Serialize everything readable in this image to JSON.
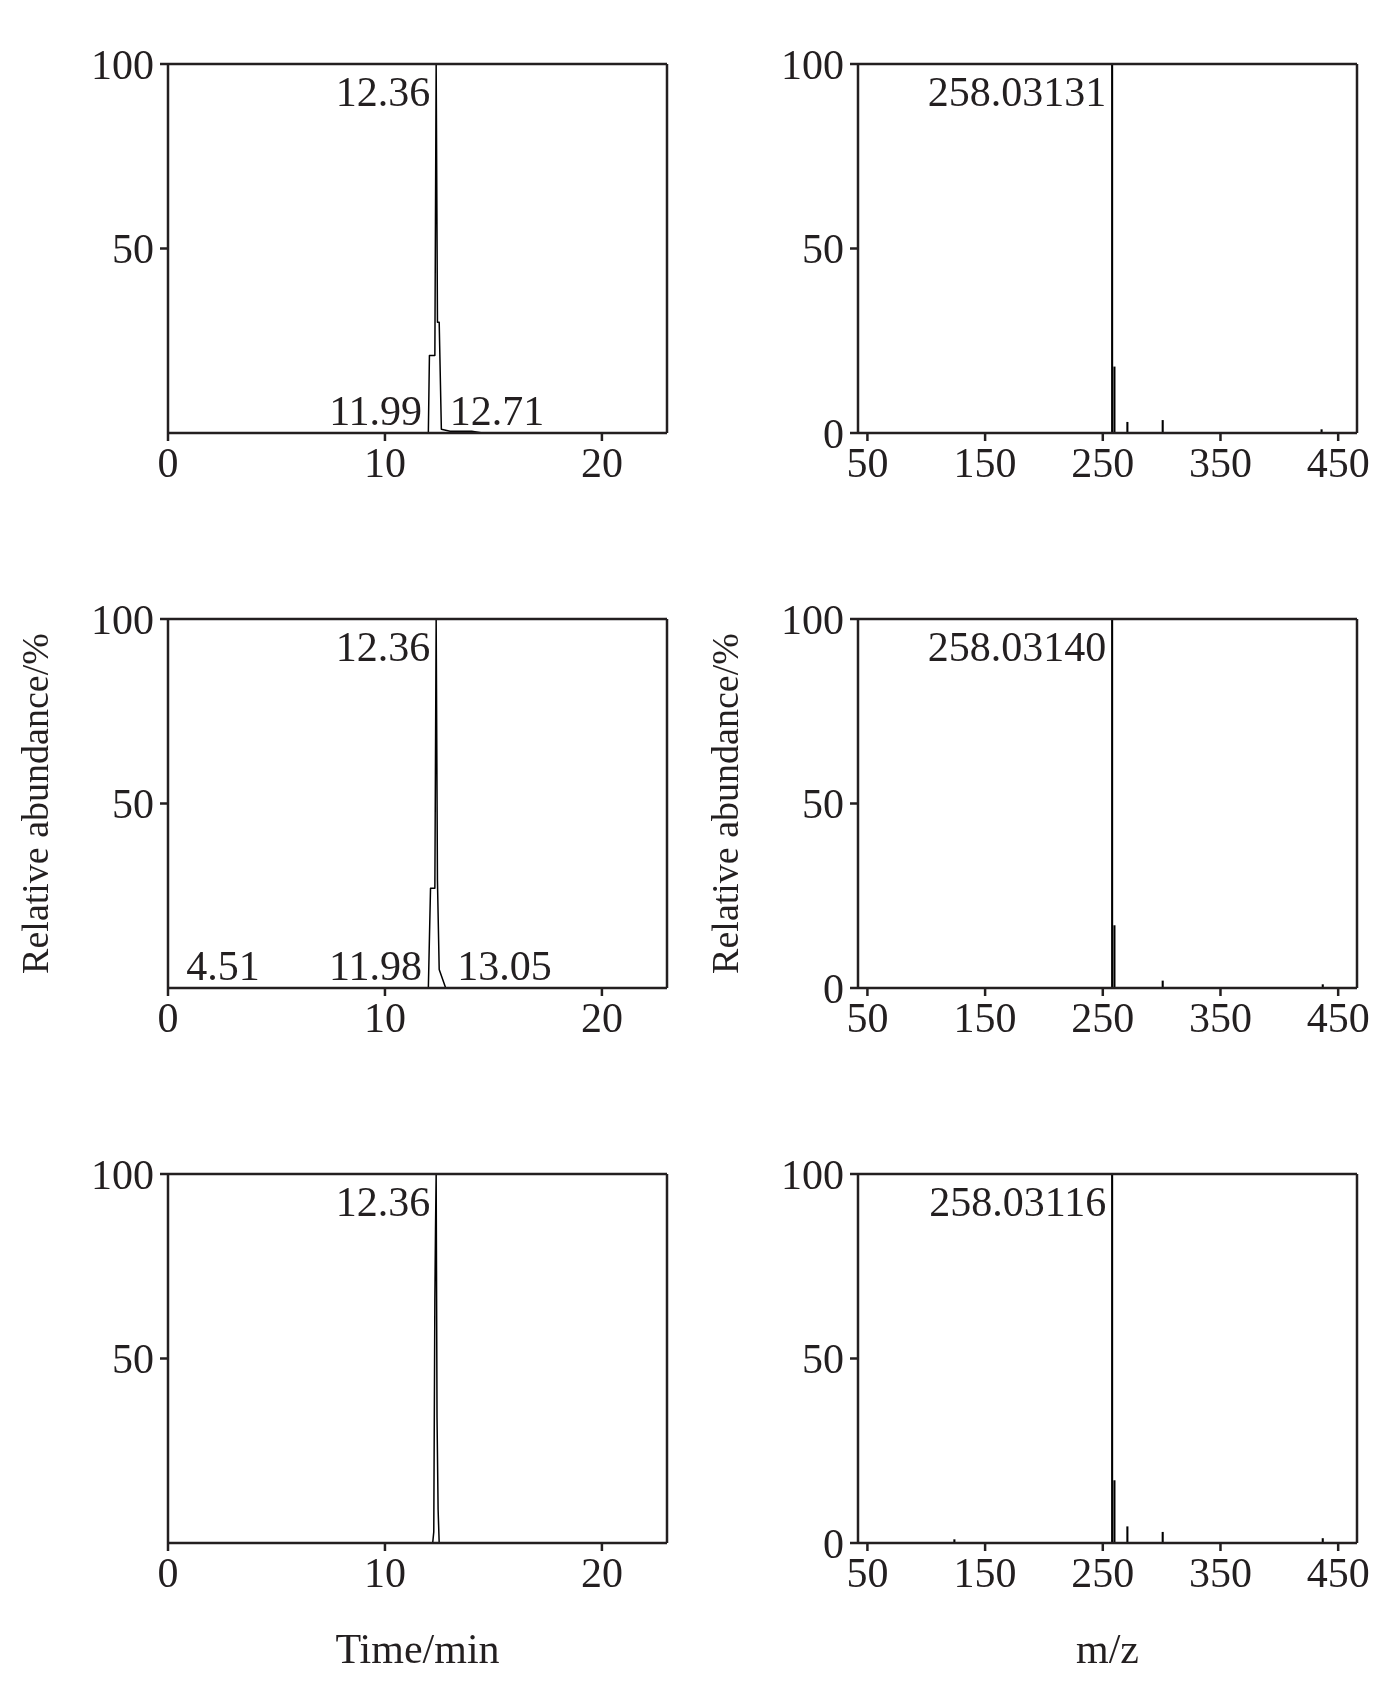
{
  "chart_data": [
    {
      "type": "line",
      "x": [
        0,
        11.9,
        12.0,
        12.05,
        12.3,
        12.36,
        12.42,
        12.5,
        12.6,
        13,
        14,
        14.5,
        23
      ],
      "series": [
        {
          "color": "#000000",
          "values": [
            0,
            0,
            0,
            21,
            21,
            100,
            30,
            30,
            1,
            0.5,
            0.5,
            0,
            0
          ]
        }
      ],
      "xlim": [
        0,
        23
      ],
      "xticks": [
        0,
        10,
        20
      ],
      "ylim": [
        0,
        100
      ],
      "yticks": [
        50,
        100
      ],
      "marker": "none",
      "annotations": [
        {
          "text": "12.36",
          "x": 12.36,
          "y": 100
        },
        {
          "text": "11.99",
          "x": 11.99,
          "y": 0
        },
        {
          "text": "12.71",
          "x": 12.71,
          "y": 0
        }
      ]
    },
    {
      "type": "bar",
      "x": [
        258.03131,
        260,
        271,
        301,
        436
      ],
      "series": [
        {
          "color": "#000000",
          "values": [
            100,
            18,
            3,
            3.5,
            1
          ]
        }
      ],
      "xlim": [
        42,
        466
      ],
      "xticks": [
        50,
        150,
        250,
        350,
        450
      ],
      "ylim": [
        0,
        100
      ],
      "yticks": [
        0,
        50,
        100
      ],
      "annotations": [
        {
          "text": "258.03131",
          "x": 258.03131,
          "y": 100
        }
      ]
    },
    {
      "type": "line",
      "x": [
        0,
        10,
        12.0,
        12.1,
        12.3,
        12.36,
        12.42,
        12.5,
        12.8,
        23
      ],
      "series": [
        {
          "color": "#000000",
          "values": [
            0,
            0,
            0,
            27,
            27,
            100,
            29,
            5,
            0,
            0
          ]
        }
      ],
      "xlim": [
        0,
        23
      ],
      "xticks": [
        0,
        10,
        20
      ],
      "ylim": [
        0,
        100
      ],
      "yticks": [
        50,
        100
      ],
      "marker": "none",
      "ylabel": "Relative abundance/%",
      "annotations": [
        {
          "text": "12.36",
          "x": 12.36,
          "y": 100
        },
        {
          "text": "4.51",
          "x": 4.51,
          "y": 0
        },
        {
          "text": "11.98",
          "x": 11.98,
          "y": 0
        },
        {
          "text": "13.05",
          "x": 13.05,
          "y": 0
        }
      ]
    },
    {
      "type": "bar",
      "x": [
        258.0314,
        260,
        301,
        437
      ],
      "series": [
        {
          "color": "#000000",
          "values": [
            100,
            17,
            2,
            1
          ]
        }
      ],
      "xlim": [
        42,
        466
      ],
      "xticks": [
        50,
        150,
        250,
        350,
        450
      ],
      "ylim": [
        0,
        100
      ],
      "yticks": [
        0,
        50,
        100
      ],
      "ylabel": "Relative abundance/%",
      "annotations": [
        {
          "text": "258.03140",
          "x": 258.0314,
          "y": 100
        }
      ]
    },
    {
      "type": "line",
      "x": [
        0,
        12.2,
        12.25,
        12.3,
        12.33,
        12.36,
        12.4,
        12.45,
        12.5,
        23
      ],
      "series": [
        {
          "color": "#000000",
          "values": [
            0,
            0,
            3,
            66,
            85,
            100,
            34,
            9,
            0,
            0
          ]
        }
      ],
      "xlim": [
        0,
        23
      ],
      "xticks": [
        0,
        10,
        20
      ],
      "ylim": [
        0,
        100
      ],
      "yticks": [
        50,
        100
      ],
      "marker": "none",
      "xlabel": "Time/min",
      "annotations": [
        {
          "text": "12.36",
          "x": 12.36,
          "y": 100
        }
      ]
    },
    {
      "type": "bar",
      "x": [
        124,
        258.03116,
        260,
        271,
        301,
        437
      ],
      "series": [
        {
          "color": "#000000",
          "values": [
            1,
            100,
            17,
            4.5,
            3,
            1.3
          ]
        }
      ],
      "xlim": [
        42,
        466
      ],
      "xticks": [
        50,
        150,
        250,
        350,
        450
      ],
      "ylim": [
        0,
        100
      ],
      "yticks": [
        0,
        50,
        100
      ],
      "xlabel": "m/z",
      "annotations": [
        {
          "text": "258.03116",
          "x": 258.03116,
          "y": 100
        }
      ]
    }
  ]
}
